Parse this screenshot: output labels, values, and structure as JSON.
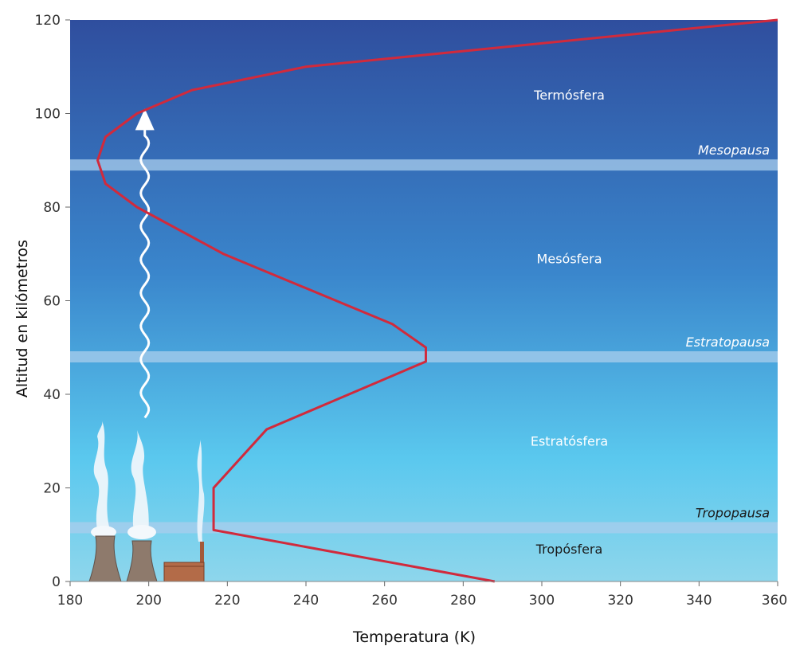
{
  "chart_data": {
    "type": "line",
    "xlabel": "Temperatura (K)",
    "ylabel": "Altitud en kilómetros",
    "xlim": [
      180,
      360
    ],
    "ylim": [
      0,
      120
    ],
    "x_ticks": [
      "180",
      "200",
      "220",
      "240",
      "260",
      "280",
      "300",
      "320",
      "340",
      "360"
    ],
    "y_ticks": [
      "0",
      "20",
      "40",
      "60",
      "80",
      "100",
      "120"
    ],
    "series": [
      {
        "color": "#d12a3c",
        "points": [
          {
            "x": 288,
            "y": 0
          },
          {
            "x": 216.5,
            "y": 11
          },
          {
            "x": 216.5,
            "y": 20
          },
          {
            "x": 230,
            "y": 32.5
          },
          {
            "x": 270.5,
            "y": 47
          },
          {
            "x": 270.5,
            "y": 50
          },
          {
            "x": 262,
            "y": 55
          },
          {
            "x": 219,
            "y": 70
          },
          {
            "x": 197,
            "y": 80
          },
          {
            "x": 189,
            "y": 85
          },
          {
            "x": 187,
            "y": 90
          },
          {
            "x": 189,
            "y": 95
          },
          {
            "x": 197,
            "y": 100
          },
          {
            "x": 211,
            "y": 105
          },
          {
            "x": 240,
            "y": 110
          },
          {
            "x": 300,
            "y": 115
          },
          {
            "x": 360,
            "y": 120
          }
        ]
      }
    ],
    "layers": [
      {
        "label": "Termósfera",
        "altitude": 103,
        "temperature": 307
      },
      {
        "label": "Mesósfera",
        "altitude": 68,
        "temperature": 307
      },
      {
        "label": "Estratósfera",
        "altitude": 29,
        "temperature": 307
      },
      {
        "label": "Tropósfera",
        "altitude": 6,
        "temperature": 307
      }
    ],
    "pauses": [
      {
        "label": "Mesopausa",
        "altitude": 89,
        "dark": false
      },
      {
        "label": "Estratopausa",
        "altitude": 48,
        "dark": false
      },
      {
        "label": "Tropopausa",
        "altitude": 11.5,
        "dark": true
      }
    ],
    "wave_arrow": {
      "x": 199,
      "from_altitude": 35,
      "to_altitude": 99
    },
    "colors": {
      "sky_top": "#2f4e9e",
      "sky_mid": "#3a86cc",
      "sky_bright": "#5ac8ee",
      "sky_bottom": "#8ed6ec",
      "band": "#a9cdec",
      "curve": "#d12a3c"
    }
  }
}
